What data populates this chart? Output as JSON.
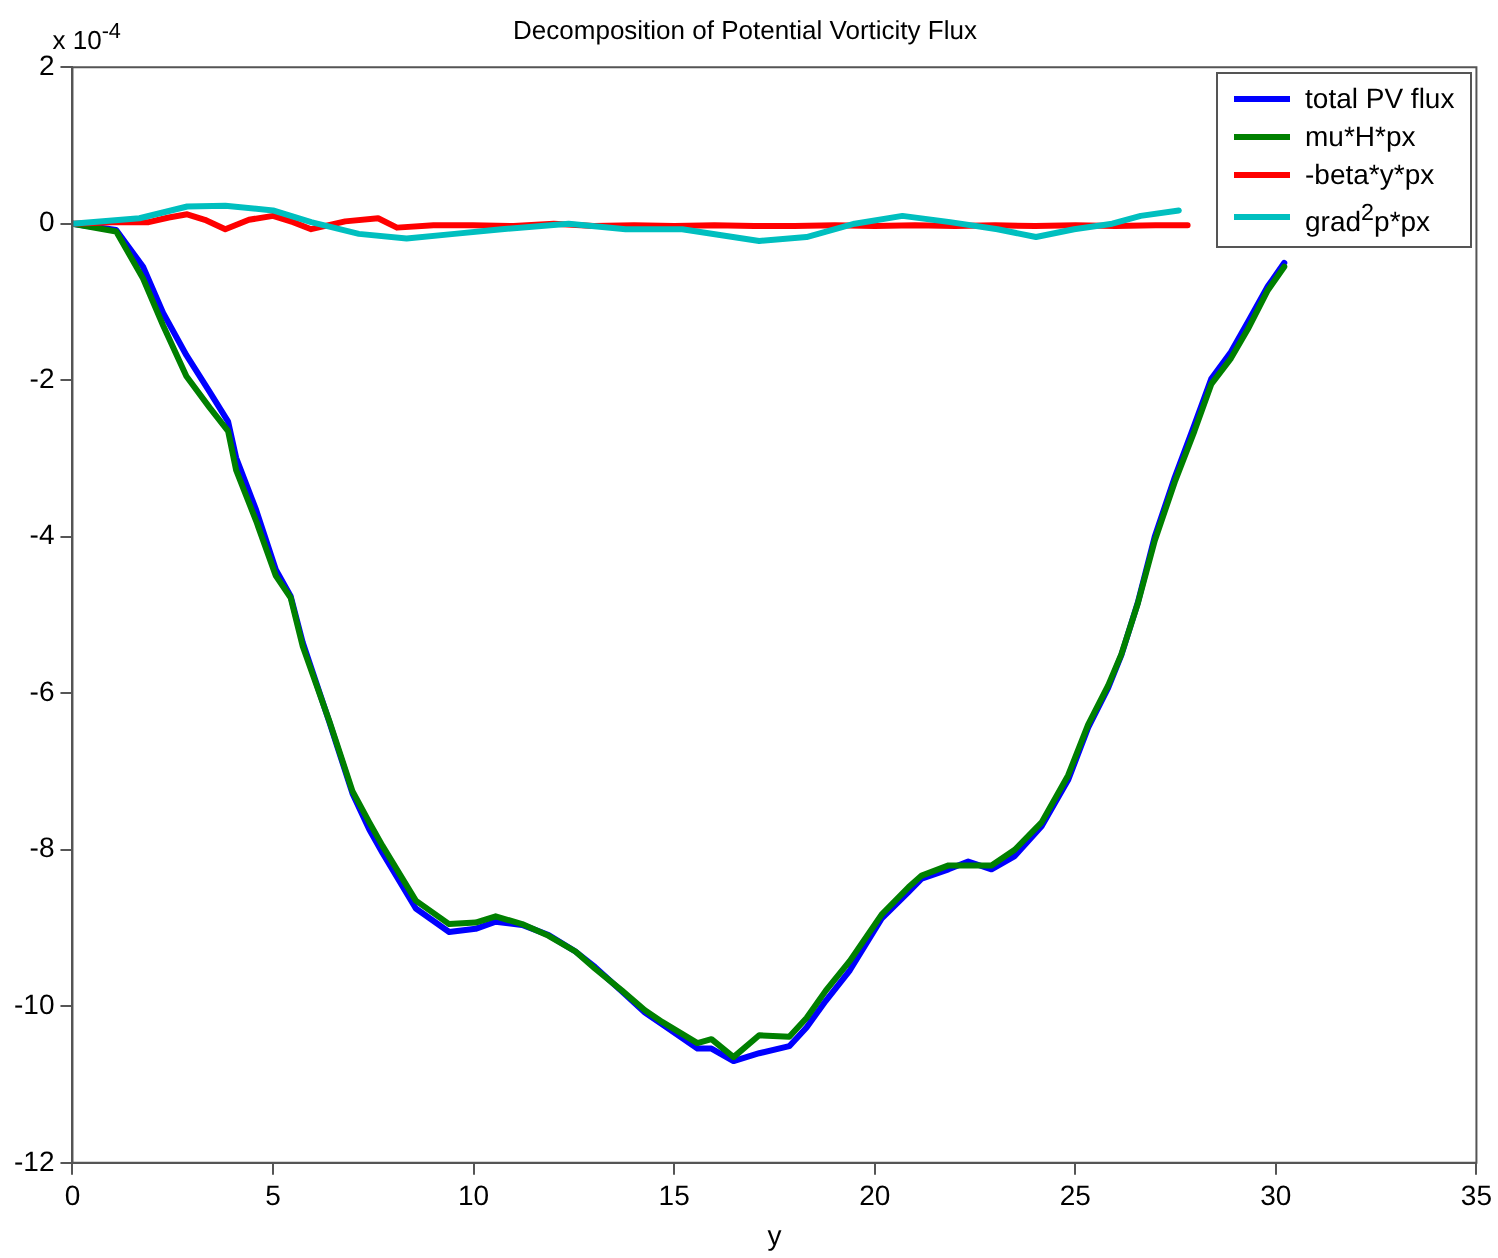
{
  "chart_data": {
    "type": "line",
    "title": "Decomposition of Potential Vorticity Flux",
    "xlabel": "y",
    "annotations": [
      "x 10$^{-4}$"
    ],
    "xlim": [
      0,
      35
    ],
    "xticks": [
      0,
      5,
      10,
      15,
      20,
      25,
      30,
      35
    ],
    "ylim": [
      -12,
      2
    ],
    "yticks": [
      -12,
      -10,
      -8,
      -6,
      -4,
      -2,
      0,
      2
    ],
    "grid": false,
    "legend": "top right",
    "marker": "none",
    "line_style": "solid",
    "series": [
      {
        "name": "total PV flux",
        "color": "#0000ff",
        "x": [
          0,
          1.09,
          1.76,
          2.26,
          2.84,
          3.42,
          3.88,
          4.08,
          4.58,
          5.07,
          5.44,
          5.74,
          6.4,
          6.98,
          7.4,
          7.73,
          8.56,
          9.39,
          10.05,
          10.55,
          11.21,
          11.87,
          12.54,
          13.03,
          13.7,
          14.27,
          14.7,
          15.58,
          15.93,
          16.48,
          17.12,
          17.87,
          18.3,
          18.78,
          19.38,
          20.17,
          20.84,
          21.17,
          21.84,
          22.33,
          22.91,
          23.49,
          24.16,
          24.82,
          25.32,
          25.82,
          26.15,
          26.56,
          26.98,
          27.48,
          27.97,
          28.39,
          28.88,
          29.3,
          29.8,
          30.21
        ],
        "values": [
          0,
          -0.08,
          -0.55,
          -1.14,
          -1.68,
          -2.15,
          -2.53,
          -2.99,
          -3.66,
          -4.42,
          -4.76,
          -5.35,
          -6.36,
          -7.28,
          -7.74,
          -8.04,
          -8.75,
          -9.05,
          -9.01,
          -8.92,
          -8.96,
          -9.09,
          -9.3,
          -9.5,
          -9.81,
          -10.08,
          -10.23,
          -10.54,
          -10.54,
          -10.7,
          -10.6,
          -10.51,
          -10.27,
          -9.93,
          -9.54,
          -8.88,
          -8.54,
          -8.37,
          -8.25,
          -8.15,
          -8.25,
          -8.08,
          -7.7,
          -7.11,
          -6.44,
          -5.93,
          -5.51,
          -4.84,
          -4.0,
          -3.24,
          -2.57,
          -1.98,
          -1.64,
          -1.26,
          -0.8,
          -0.5
        ]
      },
      {
        "name": "mu*H*px",
        "color": "#008000",
        "x": [
          0,
          1.09,
          1.76,
          2.26,
          2.84,
          3.42,
          3.88,
          4.08,
          4.58,
          5.07,
          5.44,
          5.74,
          6.4,
          6.98,
          7.4,
          7.73,
          8.56,
          9.39,
          10.05,
          10.55,
          11.21,
          11.87,
          12.54,
          13.03,
          13.7,
          14.27,
          14.7,
          15.58,
          15.93,
          16.48,
          17.12,
          17.87,
          18.3,
          18.78,
          19.38,
          20.17,
          20.84,
          21.17,
          21.84,
          22.33,
          22.91,
          23.49,
          24.16,
          24.82,
          25.32,
          25.82,
          26.15,
          26.56,
          26.98,
          27.48,
          27.97,
          28.39,
          28.88,
          29.3,
          29.8,
          30.21
        ],
        "values": [
          0,
          -0.1,
          -0.7,
          -1.3,
          -1.95,
          -2.35,
          -2.65,
          -3.15,
          -3.8,
          -4.5,
          -4.78,
          -5.4,
          -6.35,
          -7.25,
          -7.65,
          -7.95,
          -8.65,
          -8.95,
          -8.93,
          -8.85,
          -8.95,
          -9.1,
          -9.3,
          -9.52,
          -9.8,
          -10.05,
          -10.2,
          -10.47,
          -10.42,
          -10.65,
          -10.37,
          -10.39,
          -10.15,
          -9.8,
          -9.42,
          -8.83,
          -8.48,
          -8.33,
          -8.2,
          -8.2,
          -8.2,
          -8.0,
          -7.65,
          -7.05,
          -6.4,
          -5.9,
          -5.5,
          -4.85,
          -4.05,
          -3.3,
          -2.65,
          -2.05,
          -1.72,
          -1.35,
          -0.85,
          -0.55
        ]
      },
      {
        "name": "-beta*y*px",
        "color": "#ff0000",
        "x": [
          0,
          1,
          1.9,
          2.4,
          2.86,
          3.3,
          3.81,
          4.4,
          5,
          5.5,
          5.95,
          6.8,
          7.62,
          8.09,
          9,
          9.98,
          11,
          12,
          13,
          14,
          15,
          16,
          17,
          18,
          19,
          20,
          21,
          22,
          23,
          24,
          25,
          26,
          27,
          27.8
        ],
        "values": [
          0,
          0.02,
          0.02,
          0.08,
          0.12,
          0.05,
          -0.07,
          0.05,
          0.1,
          0.02,
          -0.07,
          0.03,
          0.07,
          -0.05,
          -0.02,
          -0.02,
          -0.03,
          0,
          -0.03,
          -0.02,
          -0.03,
          -0.02,
          -0.03,
          -0.03,
          -0.02,
          -0.03,
          -0.02,
          -0.03,
          -0.02,
          -0.03,
          -0.02,
          -0.03,
          -0.02,
          -0.02
        ]
      },
      {
        "name": "grad$^{2}$p*px",
        "color": "#00bfbf",
        "x": [
          0,
          1.67,
          2.86,
          3.81,
          5,
          5.95,
          7.14,
          8.33,
          9.52,
          10.7,
          12.37,
          13.79,
          15.2,
          17.12,
          18.3,
          19.5,
          20.69,
          21.88,
          23.06,
          24.02,
          24.97,
          25.92,
          26.63,
          27.58
        ],
        "values": [
          0,
          0.07,
          0.22,
          0.23,
          0.17,
          0.02,
          -0.13,
          -0.19,
          -0.13,
          -0.07,
          0,
          -0.07,
          -0.07,
          -0.22,
          -0.17,
          0,
          0.1,
          0.02,
          -0.07,
          -0.17,
          -0.07,
          0,
          0.1,
          0.17
        ]
      }
    ]
  }
}
